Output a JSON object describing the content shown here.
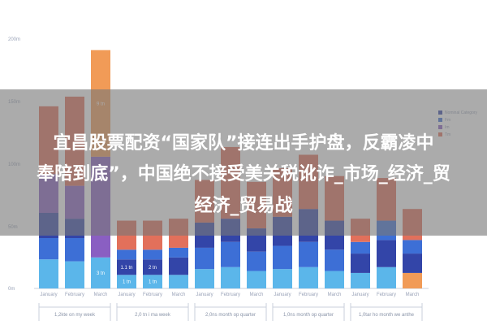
{
  "colors": {
    "red": "#e2705b",
    "purple": "#8a5fc2",
    "navy": "#3345a8",
    "blue": "#3d6fd6",
    "sky": "#5bb6ea",
    "orange": "#f19b57",
    "axis": "#c9cfdb",
    "overlay": "#7a7a7a"
  },
  "headline": {
    "line1": "宜昌股票配资“国家队”接连出手护盘，反霸凌中",
    "line2": "奉陪到底”，中国绝不接受美关税讹诈_市场_经济_贸",
    "line3": "经济_贸易战"
  },
  "chart_data": {
    "type": "bar",
    "stacked": true,
    "ytick_labels": [
      "200m",
      "150m",
      "100m",
      "50m",
      "0m"
    ],
    "legend": [
      "Nominal Category",
      "Fm",
      "Im",
      "Tm"
    ],
    "groups": [
      {
        "label": "1,2kte on my week",
        "bars": [
          {
            "label": "January",
            "segments": [
              {
                "c": "sky",
                "v": 30
              },
              {
                "c": "blue",
                "v": 22
              },
              {
                "c": "navy",
                "v": 26
              },
              {
                "c": "purple",
                "v": 40
              },
              {
                "c": "red",
                "v": 70
              }
            ]
          },
          {
            "label": "February",
            "segments": [
              {
                "c": "sky",
                "v": 28
              },
              {
                "c": "blue",
                "v": 24
              },
              {
                "c": "navy",
                "v": 20
              },
              {
                "c": "purple",
                "v": 34
              },
              {
                "c": "red",
                "v": 92
              }
            ]
          },
          {
            "label": "March",
            "segments": [
              {
                "c": "sky",
                "v": 32,
                "t": "3 tn"
              },
              {
                "c": "purple",
                "v": 104
              },
              {
                "c": "orange",
                "v": 110,
                "t": "9 tn"
              }
            ]
          }
        ]
      },
      {
        "label": "2,0 tn i ma week",
        "bars": [
          {
            "label": "January",
            "segments": [
              {
                "c": "sky",
                "v": 14,
                "t": "1 tn"
              },
              {
                "c": "navy",
                "v": 16,
                "t": "1.1 tn"
              },
              {
                "c": "blue",
                "v": 10
              },
              {
                "c": "red",
                "v": 30
              }
            ]
          },
          {
            "label": "February",
            "segments": [
              {
                "c": "sky",
                "v": 14,
                "t": "1 tn"
              },
              {
                "c": "navy",
                "v": 16,
                "t": "2 tn"
              },
              {
                "c": "blue",
                "v": 10
              },
              {
                "c": "red",
                "v": 30
              }
            ]
          },
          {
            "label": "March",
            "segments": [
              {
                "c": "sky",
                "v": 14
              },
              {
                "c": "navy",
                "v": 18
              },
              {
                "c": "blue",
                "v": 10
              },
              {
                "c": "red",
                "v": 30
              }
            ]
          }
        ]
      },
      {
        "label": "2,0ns month op quarter",
        "bars": [
          {
            "label": "January",
            "segments": [
              {
                "c": "sky",
                "v": 20
              },
              {
                "c": "blue",
                "v": 22
              },
              {
                "c": "navy",
                "v": 26
              },
              {
                "c": "red",
                "v": 44
              }
            ]
          },
          {
            "label": "February",
            "segments": [
              {
                "c": "sky",
                "v": 22
              },
              {
                "c": "blue",
                "v": 26
              },
              {
                "c": "navy",
                "v": 24
              },
              {
                "c": "red",
                "v": 74
              }
            ]
          },
          {
            "label": "March",
            "segments": [
              {
                "c": "sky",
                "v": 18
              },
              {
                "c": "blue",
                "v": 20
              },
              {
                "c": "navy",
                "v": 24
              },
              {
                "c": "red",
                "v": 48
              }
            ]
          }
        ]
      },
      {
        "label": "1,0ns month op quarter",
        "bars": [
          {
            "label": "January",
            "segments": [
              {
                "c": "sky",
                "v": 20
              },
              {
                "c": "blue",
                "v": 24
              },
              {
                "c": "navy",
                "v": 30
              },
              {
                "c": "red",
                "v": 50
              }
            ]
          },
          {
            "label": "February",
            "segments": [
              {
                "c": "sky",
                "v": 22
              },
              {
                "c": "blue",
                "v": 26
              },
              {
                "c": "navy",
                "v": 34
              },
              {
                "c": "red",
                "v": 56
              }
            ]
          },
          {
            "label": "March",
            "segments": [
              {
                "c": "sky",
                "v": 18
              },
              {
                "c": "blue",
                "v": 22
              },
              {
                "c": "navy",
                "v": 30
              },
              {
                "c": "red",
                "v": 46
              }
            ]
          }
        ]
      },
      {
        "label": "1,0tar ho month we anthe",
        "bars": [
          {
            "label": "January",
            "segments": [
              {
                "c": "sky",
                "v": 16
              },
              {
                "c": "navy",
                "v": 20
              },
              {
                "c": "blue",
                "v": 12
              },
              {
                "c": "red",
                "v": 24
              }
            ]
          },
          {
            "label": "February",
            "segments": [
              {
                "c": "sky",
                "v": 22
              },
              {
                "c": "navy",
                "v": 28
              },
              {
                "c": "blue",
                "v": 20
              },
              {
                "c": "red",
                "v": 44
              }
            ]
          },
          {
            "label": "March",
            "segments": [
              {
                "c": "orange",
                "v": 16
              },
              {
                "c": "navy",
                "v": 20
              },
              {
                "c": "blue",
                "v": 14
              },
              {
                "c": "red",
                "v": 32
              }
            ]
          }
        ]
      }
    ]
  }
}
